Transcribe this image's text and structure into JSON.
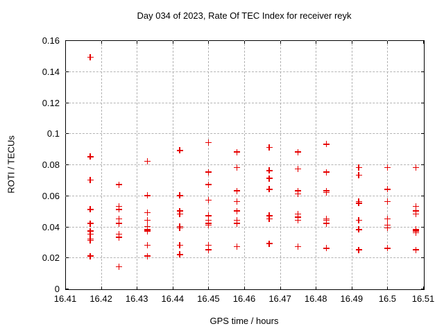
{
  "title": "Day 034 of 2023, Rate Of TEC Index for receiver reyk",
  "colors": {
    "marker": "#e60000",
    "grid": "#b3b3b3",
    "axis": "#000000",
    "background": "#ffffff"
  },
  "chart_data": {
    "type": "scatter",
    "title": "Day 034 of 2023, Rate Of TEC Index for receiver reyk",
    "xlabel": "GPS time / hours",
    "ylabel": "ROTI / TECUs",
    "xlim": [
      16.41,
      16.51
    ],
    "ylim": [
      0,
      0.16
    ],
    "xticks": [
      16.41,
      16.42,
      16.43,
      16.44,
      16.45,
      16.46,
      16.47,
      16.48,
      16.49,
      16.5,
      16.51
    ],
    "xtick_labels": [
      "16.41",
      "16.42",
      "16.43",
      "16.44",
      "16.45",
      "16.46",
      "16.47",
      "16.48",
      "16.49",
      "16.5",
      "16.51"
    ],
    "yticks": [
      0,
      0.02,
      0.04,
      0.06,
      0.08,
      0.1,
      0.12,
      0.14,
      0.16
    ],
    "ytick_labels": [
      "0",
      "0.02",
      "0.04",
      "0.06",
      "0.08",
      "0.1",
      "0.12",
      "0.14",
      "0.16"
    ],
    "grid": true,
    "legend": "none",
    "marker": "plus",
    "series": [
      {
        "name": "ROTI",
        "color": "#e60000",
        "points": [
          [
            16.417,
            0.149
          ],
          [
            16.417,
            0.085
          ],
          [
            16.417,
            0.07
          ],
          [
            16.417,
            0.051
          ],
          [
            16.417,
            0.042
          ],
          [
            16.417,
            0.037
          ],
          [
            16.417,
            0.035
          ],
          [
            16.417,
            0.032
          ],
          [
            16.417,
            0.031
          ],
          [
            16.417,
            0.021
          ],
          [
            16.425,
            0.067
          ],
          [
            16.425,
            0.053
          ],
          [
            16.425,
            0.051
          ],
          [
            16.425,
            0.045
          ],
          [
            16.425,
            0.042
          ],
          [
            16.425,
            0.035
          ],
          [
            16.425,
            0.033
          ],
          [
            16.425,
            0.014
          ],
          [
            16.433,
            0.082
          ],
          [
            16.433,
            0.06
          ],
          [
            16.433,
            0.049
          ],
          [
            16.433,
            0.044
          ],
          [
            16.433,
            0.04
          ],
          [
            16.433,
            0.038
          ],
          [
            16.433,
            0.037
          ],
          [
            16.433,
            0.028
          ],
          [
            16.433,
            0.021
          ],
          [
            16.442,
            0.089
          ],
          [
            16.442,
            0.06
          ],
          [
            16.442,
            0.05
          ],
          [
            16.442,
            0.048
          ],
          [
            16.442,
            0.04
          ],
          [
            16.442,
            0.039
          ],
          [
            16.442,
            0.028
          ],
          [
            16.442,
            0.022
          ],
          [
            16.45,
            0.094
          ],
          [
            16.45,
            0.075
          ],
          [
            16.45,
            0.067
          ],
          [
            16.45,
            0.057
          ],
          [
            16.45,
            0.047
          ],
          [
            16.45,
            0.044
          ],
          [
            16.45,
            0.042
          ],
          [
            16.45,
            0.041
          ],
          [
            16.45,
            0.028
          ],
          [
            16.45,
            0.025
          ],
          [
            16.458,
            0.088
          ],
          [
            16.458,
            0.078
          ],
          [
            16.458,
            0.063
          ],
          [
            16.458,
            0.056
          ],
          [
            16.458,
            0.05
          ],
          [
            16.458,
            0.044
          ],
          [
            16.458,
            0.042
          ],
          [
            16.458,
            0.027
          ],
          [
            16.467,
            0.091
          ],
          [
            16.467,
            0.076
          ],
          [
            16.467,
            0.071
          ],
          [
            16.467,
            0.064
          ],
          [
            16.467,
            0.047
          ],
          [
            16.467,
            0.045
          ],
          [
            16.467,
            0.029
          ],
          [
            16.475,
            0.088
          ],
          [
            16.475,
            0.077
          ],
          [
            16.475,
            0.063
          ],
          [
            16.475,
            0.061
          ],
          [
            16.475,
            0.048
          ],
          [
            16.475,
            0.046
          ],
          [
            16.475,
            0.044
          ],
          [
            16.475,
            0.027
          ],
          [
            16.483,
            0.093
          ],
          [
            16.483,
            0.075
          ],
          [
            16.483,
            0.063
          ],
          [
            16.483,
            0.062
          ],
          [
            16.483,
            0.045
          ],
          [
            16.483,
            0.044
          ],
          [
            16.483,
            0.042
          ],
          [
            16.483,
            0.026
          ],
          [
            16.492,
            0.078
          ],
          [
            16.492,
            0.073
          ],
          [
            16.492,
            0.056
          ],
          [
            16.492,
            0.055
          ],
          [
            16.492,
            0.044
          ],
          [
            16.492,
            0.038
          ],
          [
            16.492,
            0.025
          ],
          [
            16.5,
            0.078
          ],
          [
            16.5,
            0.064
          ],
          [
            16.5,
            0.056
          ],
          [
            16.5,
            0.045
          ],
          [
            16.5,
            0.041
          ],
          [
            16.5,
            0.039
          ],
          [
            16.5,
            0.026
          ],
          [
            16.508,
            0.078
          ],
          [
            16.508,
            0.053
          ],
          [
            16.508,
            0.05
          ],
          [
            16.508,
            0.048
          ],
          [
            16.508,
            0.038
          ],
          [
            16.508,
            0.037
          ],
          [
            16.508,
            0.036
          ],
          [
            16.508,
            0.025
          ]
        ]
      }
    ]
  }
}
